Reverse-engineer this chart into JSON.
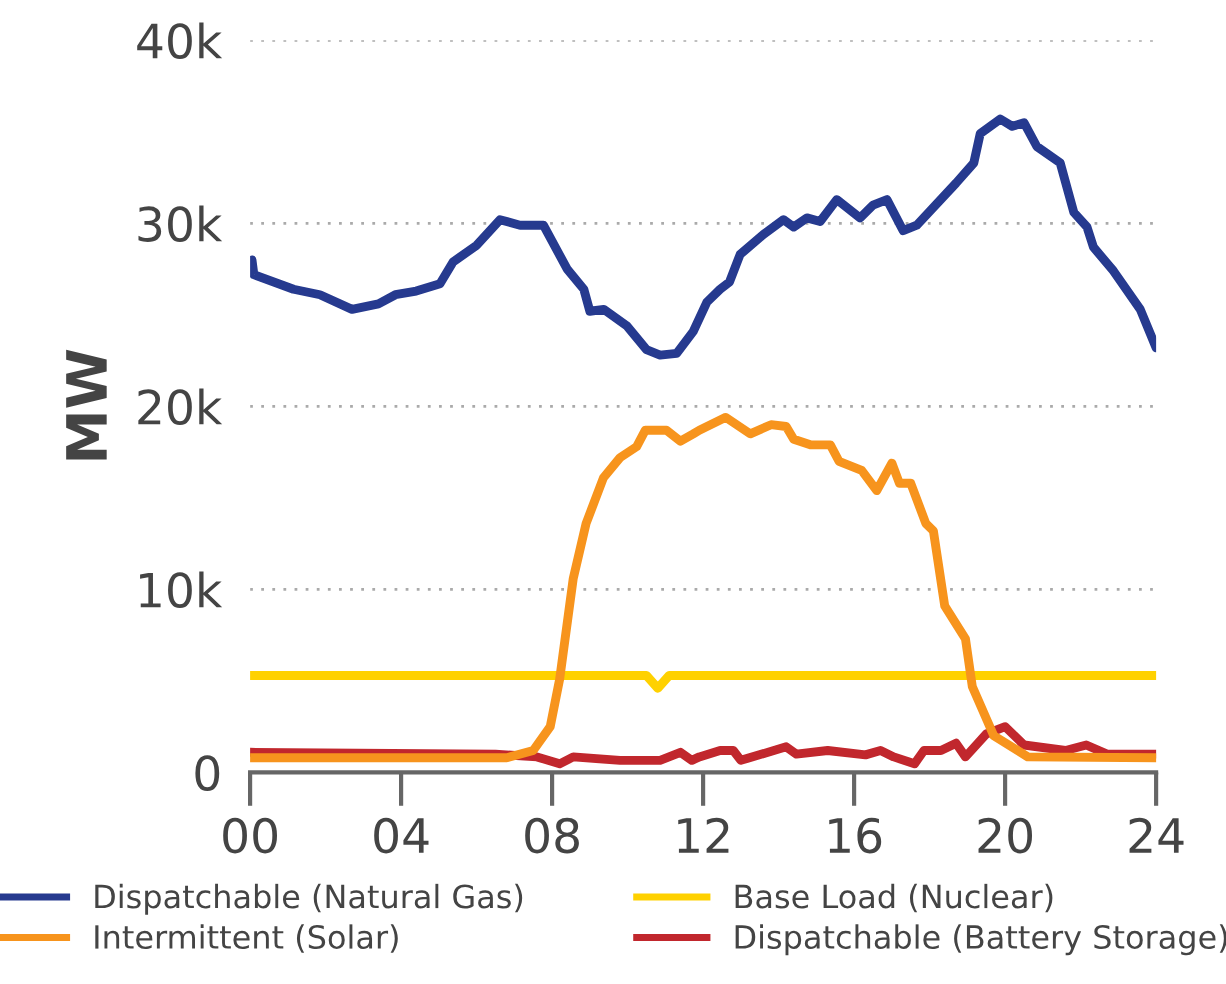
{
  "chart_data": {
    "type": "line",
    "ylabel": "MW",
    "xlim": [
      0,
      24
    ],
    "xticks": [
      {
        "value": 0,
        "label": "00"
      },
      {
        "value": 4,
        "label": "04"
      },
      {
        "value": 8,
        "label": "08"
      },
      12,
      16,
      20,
      24
    ],
    "ylim": [
      0,
      40000
    ],
    "yticks": [
      0,
      {
        "value": 10000,
        "label": "10k"
      },
      {
        "value": 20000,
        "label": "20k"
      },
      {
        "value": 30000,
        "label": "30k"
      },
      {
        "value": 40000,
        "label": "40k"
      }
    ],
    "grid": "y",
    "legend": "bottom",
    "marker": "none",
    "line_style": "solid",
    "series": [
      {
        "name": "Dispatchable (Natural Gas)",
        "color": "#263a8f",
        "x": [
          0,
          0.05,
          0.1,
          1.15,
          1.85,
          2.7,
          3.4,
          3.85,
          4.4,
          5.03,
          5.38,
          6.0,
          6.62,
          7.15,
          7.77,
          8.4,
          8.84,
          9.0,
          9.37,
          9.98,
          10.5,
          10.86,
          11.3,
          11.74,
          12.1,
          12.45,
          12.7,
          12.98,
          13.6,
          14.13,
          14.4,
          14.75,
          15.1,
          15.54,
          16.16,
          16.5,
          16.87,
          17.3,
          17.66,
          18.7,
          19.17,
          19.34,
          19.87,
          20.19,
          20.5,
          20.84,
          21.46,
          21.82,
          22.17,
          22.34,
          22.87,
          23.58,
          24
        ],
        "values": [
          27500,
          28000,
          27200,
          26400,
          26100,
          25300,
          25600,
          26100,
          26300,
          26700,
          27900,
          28800,
          30200,
          29900,
          29900,
          27500,
          26400,
          25200,
          25300,
          24400,
          23100,
          22800,
          22900,
          24100,
          25700,
          26400,
          26800,
          28300,
          29400,
          30200,
          29800,
          30300,
          30100,
          31300,
          30300,
          31000,
          31300,
          29600,
          29900,
          32200,
          33300,
          34900,
          35700,
          35300,
          35500,
          34200,
          33300,
          30600,
          29800,
          28700,
          27400,
          25300,
          23200
        ]
      },
      {
        "name": "Intermittent (Solar)",
        "color": "#f7941d",
        "x": [
          0,
          6.8,
          7.5,
          7.95,
          8.2,
          8.56,
          8.9,
          9.36,
          9.8,
          10.24,
          10.47,
          11.03,
          11.4,
          11.74,
          11.9,
          12.6,
          13.25,
          13.8,
          14.2,
          14.4,
          14.84,
          15.37,
          15.6,
          16.2,
          16.6,
          17.0,
          17.2,
          17.5,
          17.9,
          18.1,
          18.4,
          18.95,
          19.13,
          19.7,
          20.6,
          24
        ],
        "values": [
          800,
          800,
          1200,
          2500,
          5100,
          10600,
          13600,
          16100,
          17200,
          17800,
          18700,
          18700,
          18100,
          18500,
          18700,
          19400,
          18500,
          19000,
          18900,
          18200,
          17900,
          17900,
          17000,
          16500,
          15400,
          16900,
          15800,
          15800,
          13600,
          13200,
          9100,
          7300,
          4700,
          2000,
          850,
          800
        ]
      },
      {
        "name": "Base Load (Nuclear)",
        "color": "#ffd100",
        "x": [
          0,
          10.5,
          10.8,
          11.1,
          24
        ],
        "values": [
          5300,
          5300,
          4600,
          5300,
          5300
        ]
      },
      {
        "name": "Dispatchable (Battery Storage)",
        "color": "#c1272d",
        "x": [
          0,
          6.5,
          7.6,
          8.2,
          8.56,
          9.8,
          10.86,
          11.4,
          11.7,
          11.9,
          12.45,
          12.8,
          13.0,
          14.2,
          14.47,
          15.3,
          16.3,
          16.7,
          17.05,
          17.6,
          17.85,
          18.3,
          18.7,
          18.95,
          19.5,
          20.0,
          20.5,
          21.6,
          22.15,
          22.7,
          24
        ],
        "values": [
          1100,
          1000,
          850,
          470,
          850,
          660,
          660,
          1100,
          660,
          850,
          1200,
          1200,
          660,
          1400,
          1000,
          1200,
          960,
          1200,
          850,
          470,
          1200,
          1200,
          1600,
          850,
          2100,
          2500,
          1500,
          1200,
          1500,
          1000,
          1000
        ]
      }
    ]
  }
}
